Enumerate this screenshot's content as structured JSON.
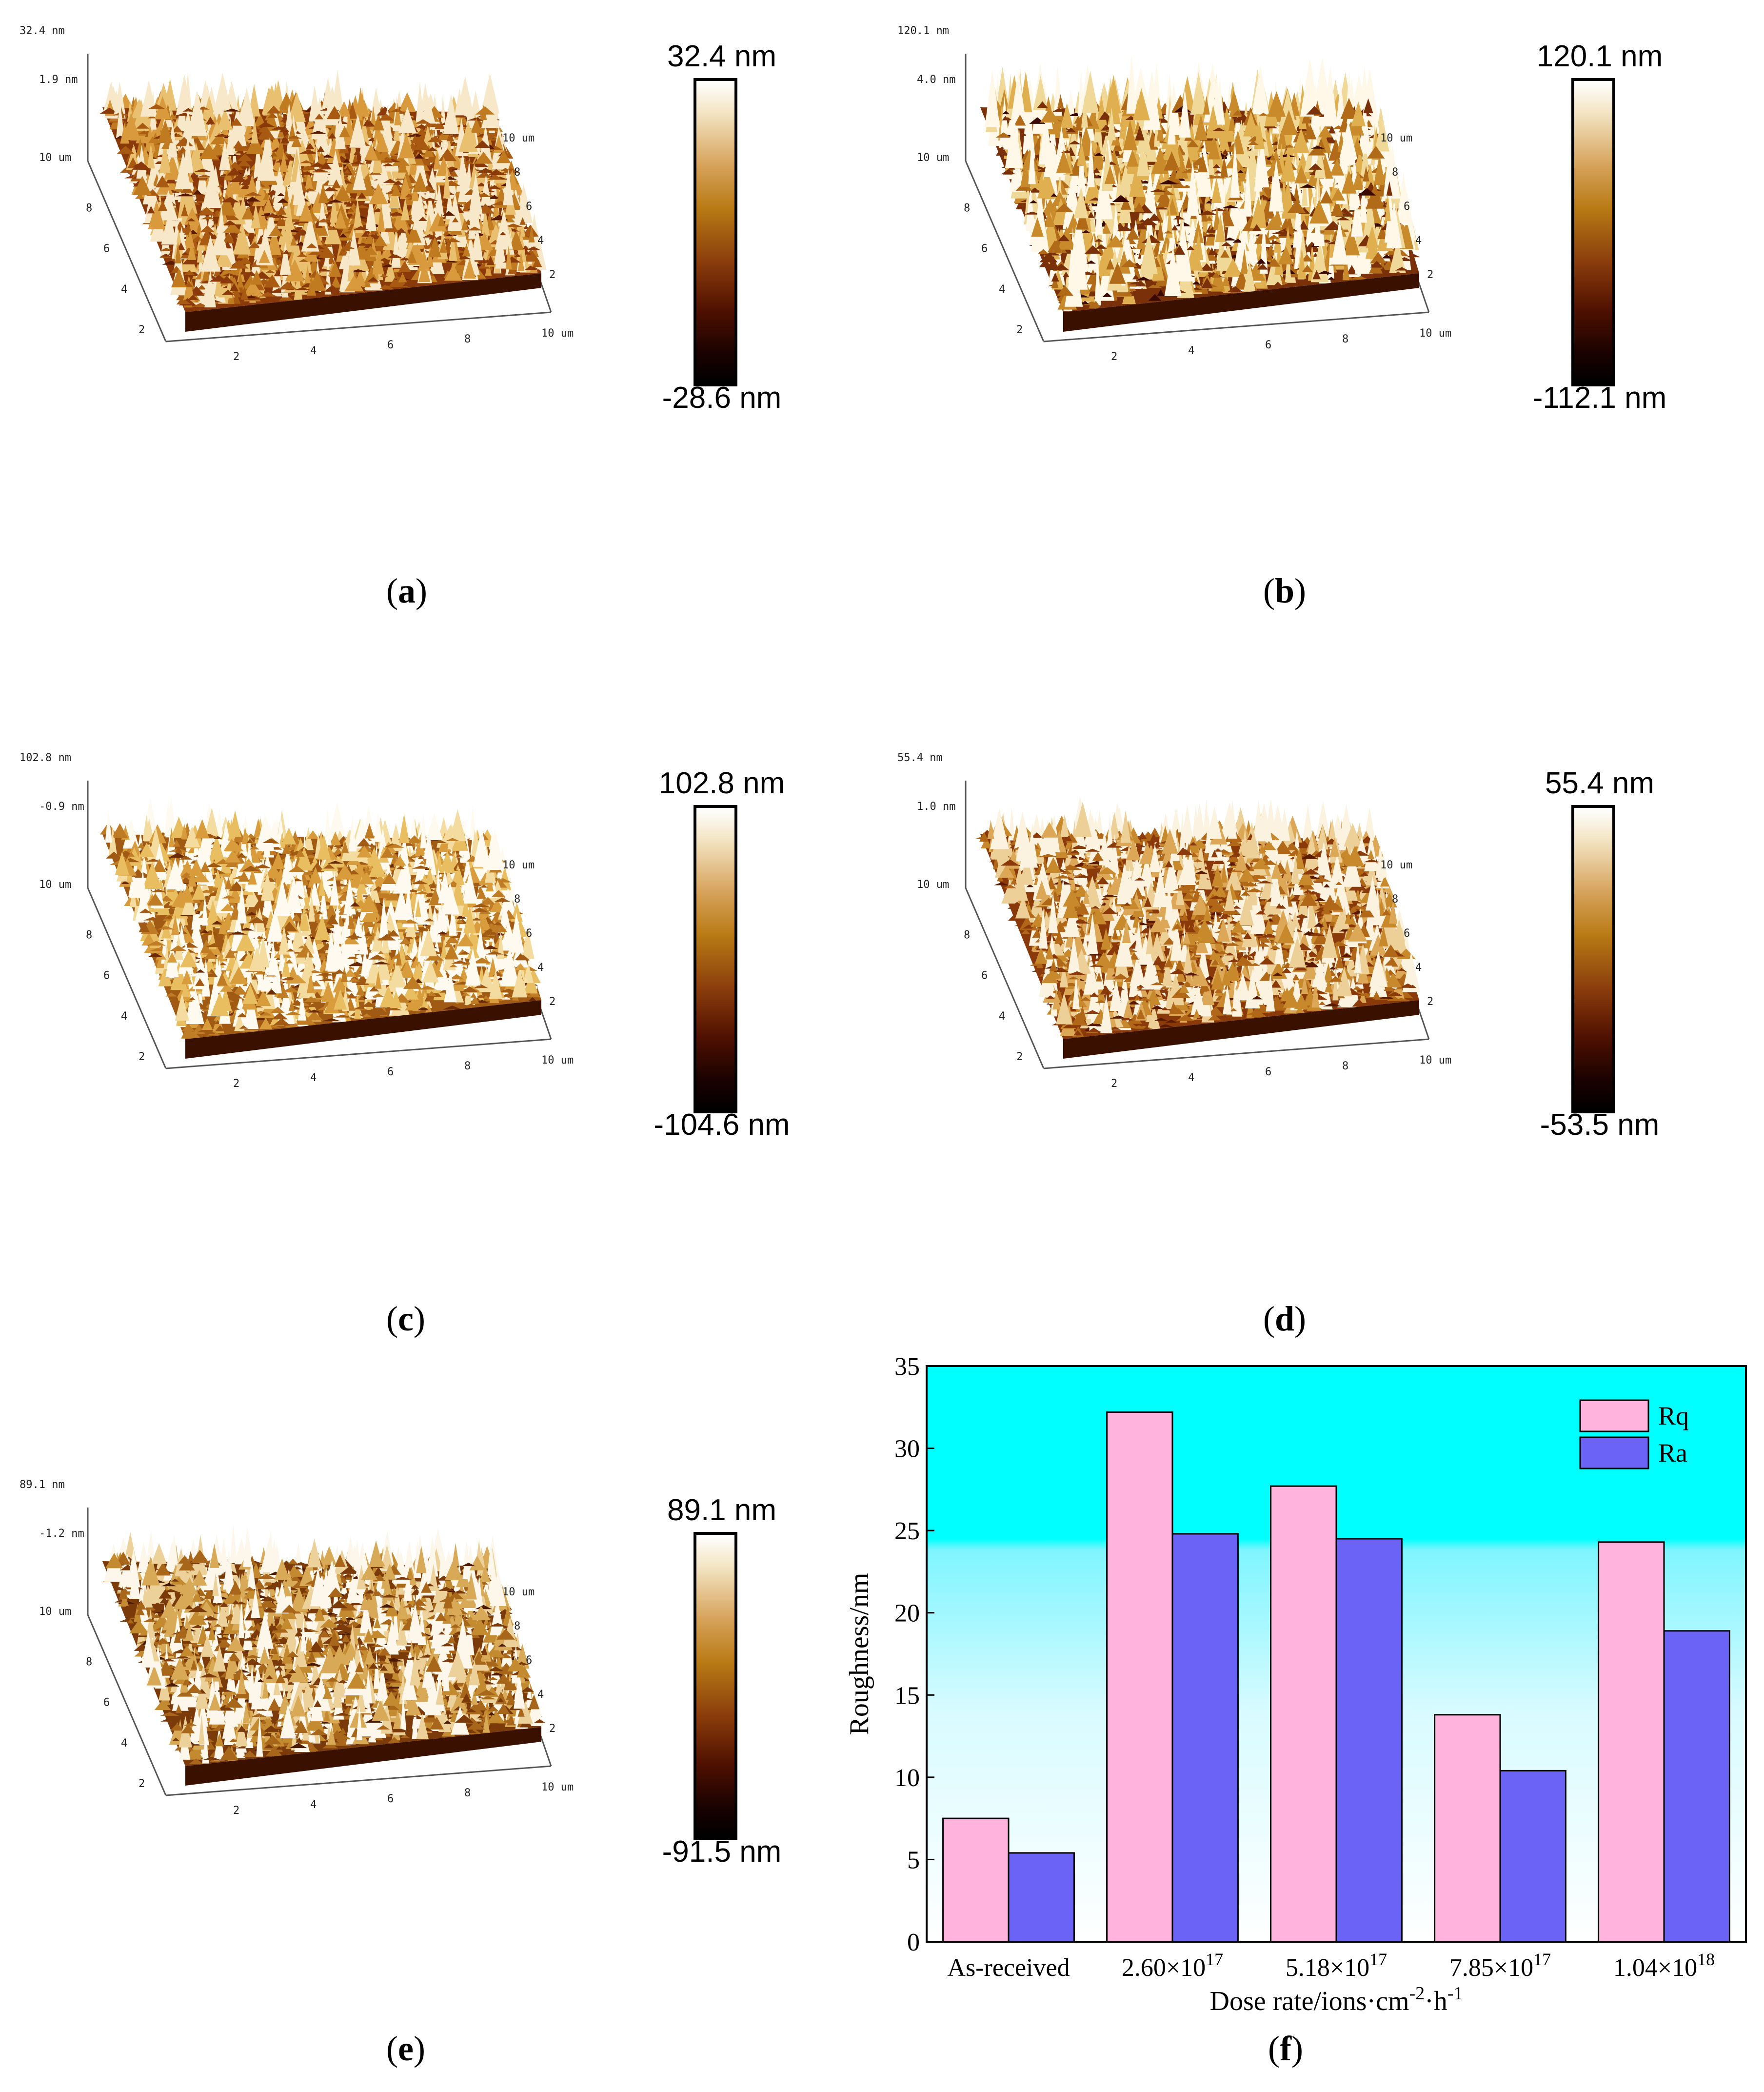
{
  "afm_panels": [
    {
      "letter": "a",
      "top_label": "32.4 nm",
      "mid_label": "1.9 nm",
      "cb_max": "32.4 nm",
      "cb_min": "-28.6 nm"
    },
    {
      "letter": "b",
      "top_label": "120.1 nm",
      "mid_label": "4.0 nm",
      "cb_max": "120.1 nm",
      "cb_min": "-112.1 nm"
    },
    {
      "letter": "c",
      "top_label": "102.8 nm",
      "mid_label": "-0.9 nm",
      "cb_max": "102.8 nm",
      "cb_min": "-104.6 nm"
    },
    {
      "letter": "d",
      "top_label": "55.4 nm",
      "mid_label": "1.0 nm",
      "cb_max": "55.4 nm",
      "cb_min": "-53.5 nm"
    },
    {
      "letter": "e",
      "top_label": "89.1 nm",
      "mid_label": "-1.2 nm",
      "cb_max": "89.1 nm",
      "cb_min": "-91.5 nm"
    }
  ],
  "axis_ticks": {
    "y_axis": [
      "10 um",
      "8",
      "6",
      "4",
      "2"
    ],
    "x_axis": [
      "2",
      "4",
      "6",
      "8",
      "10 um"
    ],
    "depth_axis": [
      "2",
      "4",
      "6",
      "8",
      "10 um"
    ]
  },
  "chart_caption": "f",
  "chart_data": {
    "type": "bar",
    "categories": [
      "As-received",
      "2.60×10^17",
      "5.18×10^17",
      "7.85×10^17",
      "1.04×10^18"
    ],
    "category_labels": [
      {
        "base": "As-received",
        "exp": ""
      },
      {
        "base": "2.60×10",
        "exp": "17"
      },
      {
        "base": "5.18×10",
        "exp": "17"
      },
      {
        "base": "7.85×10",
        "exp": "17"
      },
      {
        "base": "1.04×10",
        "exp": "18"
      }
    ],
    "series": [
      {
        "name": "Rq",
        "color": "#ffb3dd",
        "values": [
          7.5,
          32.2,
          27.7,
          13.8,
          24.3
        ]
      },
      {
        "name": "Ra",
        "color": "#6b63f5",
        "values": [
          5.4,
          24.8,
          24.5,
          10.4,
          18.9
        ]
      }
    ],
    "xlabel": "Dose rate/ions·cm-2·h-1",
    "xlabel_parts": {
      "a": "Dose rate/ions·cm",
      "b": "-2",
      "c": "·h",
      "d": "-1"
    },
    "ylabel": "Roughness/nm",
    "ylim": [
      0,
      35
    ],
    "yticks": [
      "0",
      "5",
      "10",
      "15",
      "20",
      "25",
      "30",
      "35"
    ],
    "legend_position": "top-right",
    "background_colors": [
      "#00ffff",
      "#ffffff"
    ]
  }
}
